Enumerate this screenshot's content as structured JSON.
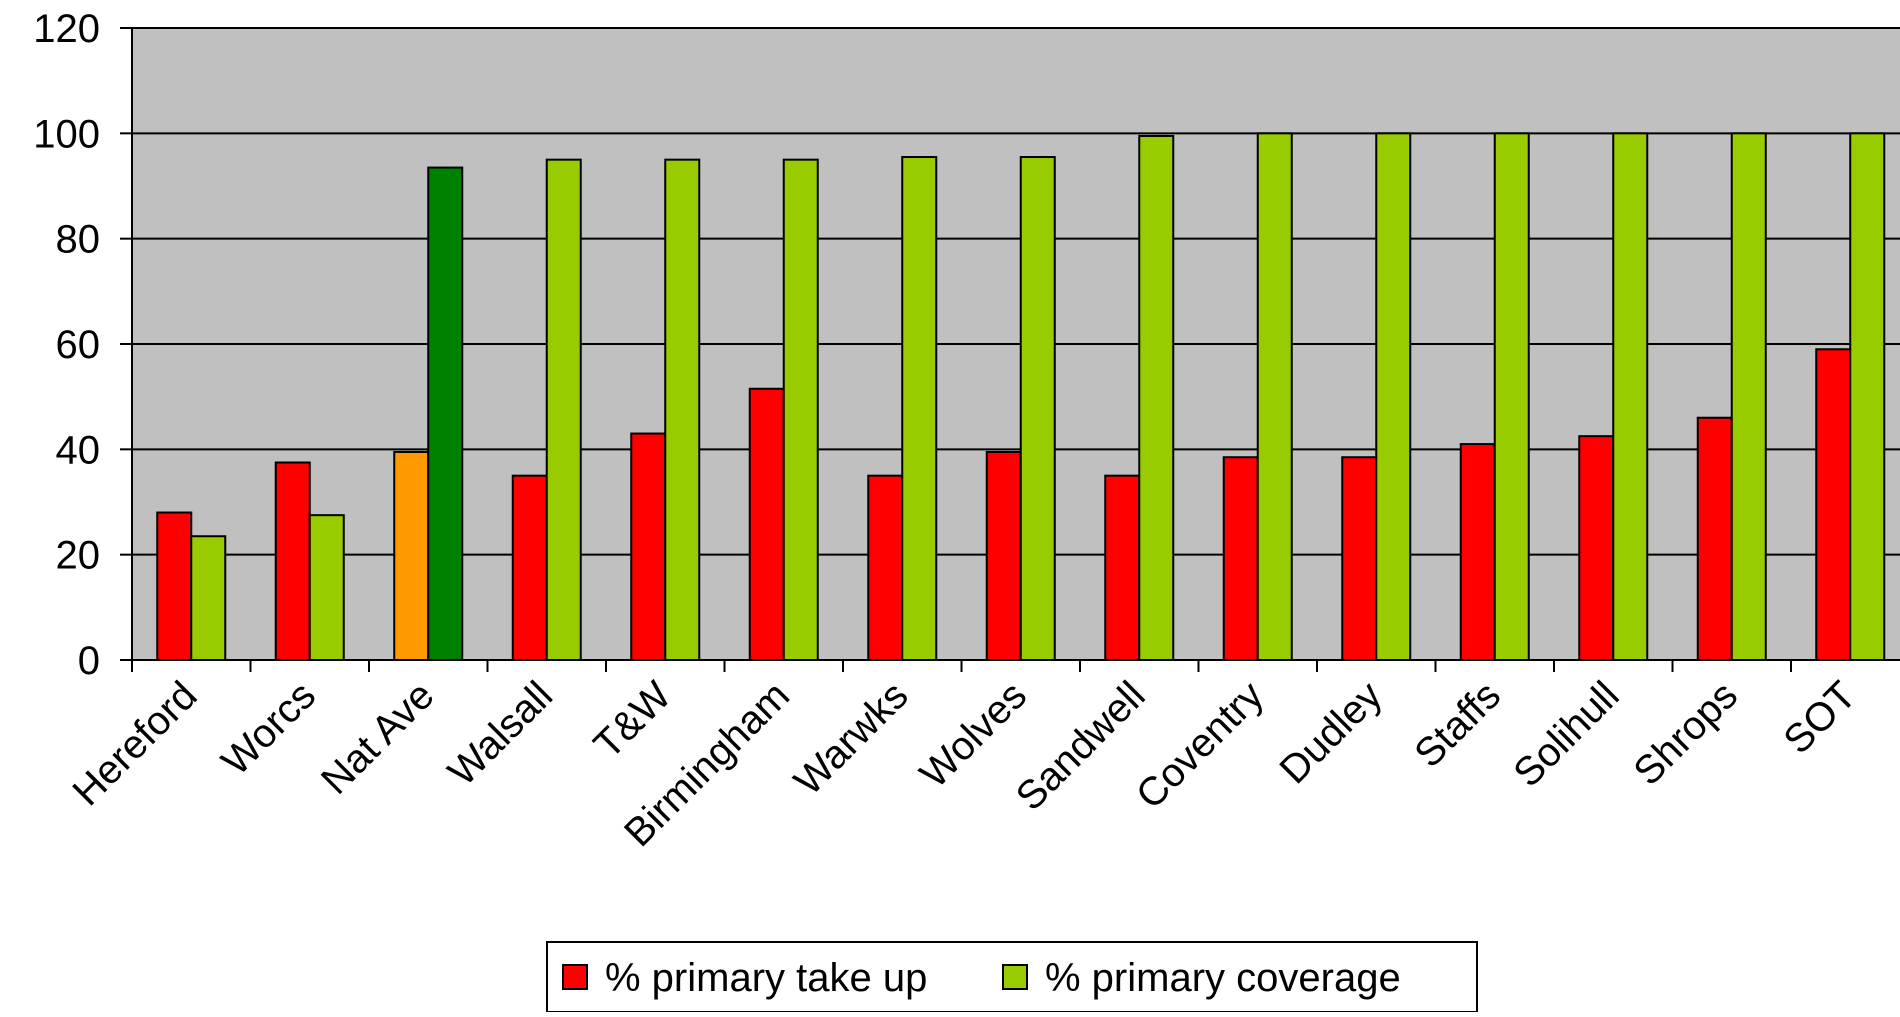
{
  "chart_data": {
    "type": "bar",
    "title": "",
    "xlabel": "",
    "ylabel": "",
    "ylim": [
      0,
      120
    ],
    "yticks": [
      0,
      20,
      40,
      60,
      80,
      100,
      120
    ],
    "grid": true,
    "plot_background": "#c0c0c0",
    "legend_position": "bottom",
    "categories": [
      "Hereford",
      "Worcs",
      "Nat Ave",
      "Walsall",
      "T&W",
      "Birmingham",
      "Warwks",
      "Wolves",
      "Sandwell",
      "Coventry",
      "Dudley",
      "Staffs",
      "Solihull",
      "Shrops",
      "SOT"
    ],
    "series": [
      {
        "name": "% primary take up",
        "color": "#ff0000",
        "values": [
          28,
          37.5,
          39.5,
          35,
          43,
          51.5,
          35,
          39.5,
          35,
          38.5,
          38.5,
          41,
          42.5,
          46,
          59
        ]
      },
      {
        "name": "% primary coverage",
        "color": "#99cc00",
        "values": [
          23.5,
          27.5,
          93.5,
          95,
          95,
          95,
          95.5,
          95.5,
          99.5,
          100,
          100,
          100,
          100,
          100,
          100
        ]
      }
    ],
    "highlight": {
      "category": "Nat Ave",
      "colors": [
        "#ff9900",
        "#008000"
      ]
    }
  }
}
